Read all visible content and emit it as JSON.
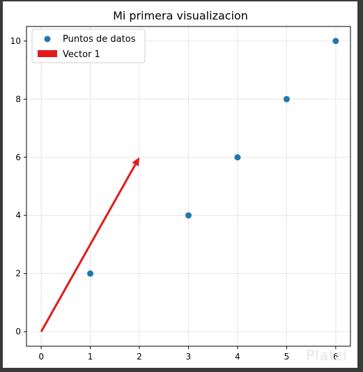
{
  "chart_data": {
    "type": "scatter",
    "title": "Mi primera visualizacion",
    "xlabel": "",
    "ylabel": "",
    "xlim": [
      -0.3,
      6.3
    ],
    "ylim": [
      -0.5,
      10.5
    ],
    "xticks": [
      0,
      1,
      2,
      3,
      4,
      5,
      6
    ],
    "yticks": [
      0,
      2,
      4,
      6,
      8,
      10
    ],
    "grid": true,
    "legend_position": "top-left",
    "series": [
      {
        "name": "Puntos de datos",
        "kind": "scatter",
        "color": "#1f77b4",
        "x": [
          1,
          3,
          4,
          5,
          6
        ],
        "y": [
          2,
          4,
          6,
          8,
          10
        ]
      }
    ],
    "vectors": [
      {
        "name": "Vector 1",
        "color": "#e31a1c",
        "origin": [
          0,
          0
        ],
        "components": [
          2,
          6
        ]
      }
    ]
  },
  "watermark": "Platzi"
}
